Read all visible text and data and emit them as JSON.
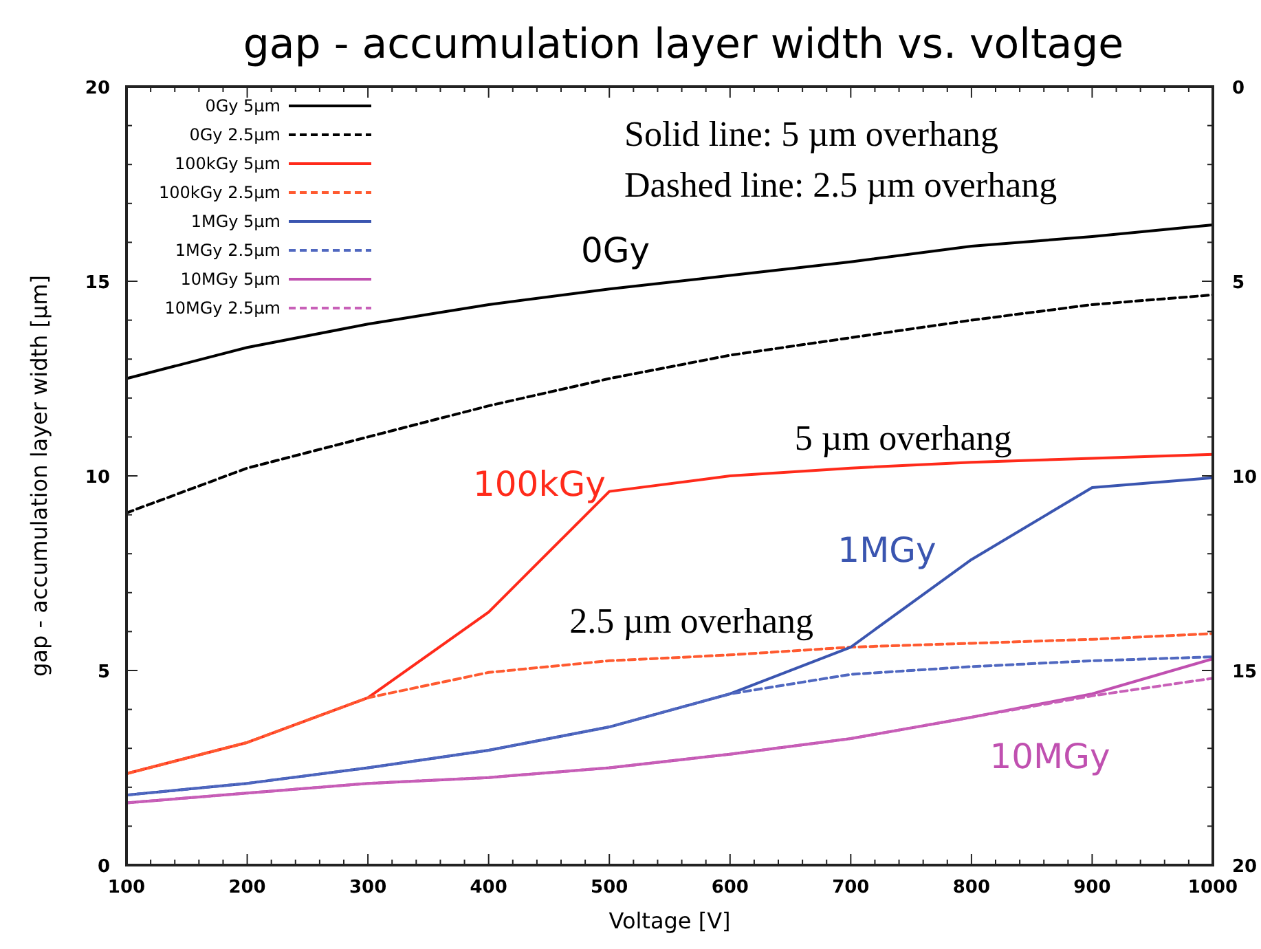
{
  "chart_data": {
    "type": "line",
    "title": "gap - accumulation layer width vs. voltage",
    "xlabel": "Voltage [V]",
    "ylabel": "gap - accumulation layer width [µm]",
    "x": [
      100,
      200,
      300,
      400,
      500,
      600,
      700,
      800,
      900,
      1000
    ],
    "xlim": [
      100,
      1000
    ],
    "xticks": [
      100,
      {
        "value": 120,
        "label": null
      },
      {
        "value": 140,
        "label": null
      },
      {
        "value": 160,
        "label": null
      },
      {
        "value": 180,
        "label": null
      },
      200,
      {
        "value": 220,
        "label": null
      },
      {
        "value": 240,
        "label": null
      },
      {
        "value": 260,
        "label": null
      },
      {
        "value": 280,
        "label": null
      },
      300,
      {
        "value": 320,
        "label": null
      },
      {
        "value": 340,
        "label": null
      },
      {
        "value": 360,
        "label": null
      },
      {
        "value": 380,
        "label": null
      },
      400,
      {
        "value": 420,
        "label": null
      },
      {
        "value": 440,
        "label": null
      },
      {
        "value": 460,
        "label": null
      },
      {
        "value": 480,
        "label": null
      },
      500,
      {
        "value": 520,
        "label": null
      },
      {
        "value": 540,
        "label": null
      },
      {
        "value": 560,
        "label": null
      },
      {
        "value": 580,
        "label": null
      },
      600,
      {
        "value": 620,
        "label": null
      },
      {
        "value": 640,
        "label": null
      },
      {
        "value": 660,
        "label": null
      },
      {
        "value": 680,
        "label": null
      },
      700,
      {
        "value": 720,
        "label": null
      },
      {
        "value": 740,
        "label": null
      },
      {
        "value": 760,
        "label": null
      },
      {
        "value": 780,
        "label": null
      },
      800,
      {
        "value": 820,
        "label": null
      },
      {
        "value": 840,
        "label": null
      },
      {
        "value": 860,
        "label": null
      },
      {
        "value": 880,
        "label": null
      },
      900,
      {
        "value": 920,
        "label": null
      },
      {
        "value": 940,
        "label": null
      },
      {
        "value": 960,
        "label": null
      },
      {
        "value": 980,
        "label": null
      },
      1000
    ],
    "ylim": [
      0,
      20
    ],
    "yticks": [
      0,
      {
        "value": 1,
        "label": null
      },
      {
        "value": 2,
        "label": null
      },
      {
        "value": 3,
        "label": null
      },
      {
        "value": 4,
        "label": null
      },
      5,
      {
        "value": 6,
        "label": null
      },
      {
        "value": 7,
        "label": null
      },
      {
        "value": 8,
        "label": null
      },
      {
        "value": 9,
        "label": null
      },
      10,
      {
        "value": 11,
        "label": null
      },
      {
        "value": 12,
        "label": null
      },
      {
        "value": 13,
        "label": null
      },
      {
        "value": 14,
        "label": null
      },
      15,
      {
        "value": 16,
        "label": null
      },
      {
        "value": 17,
        "label": null
      },
      {
        "value": 18,
        "label": null
      },
      {
        "value": 19,
        "label": null
      },
      20
    ],
    "y2lim": [
      20,
      0
    ],
    "y2ticks": [
      0,
      {
        "value": 1,
        "label": null
      },
      {
        "value": 2,
        "label": null
      },
      {
        "value": 3,
        "label": null
      },
      {
        "value": 4,
        "label": null
      },
      5,
      {
        "value": 6,
        "label": null
      },
      {
        "value": 7,
        "label": null
      },
      {
        "value": 8,
        "label": null
      },
      {
        "value": 9,
        "label": null
      },
      10,
      {
        "value": 11,
        "label": null
      },
      {
        "value": 12,
        "label": null
      },
      {
        "value": 13,
        "label": null
      },
      {
        "value": 14,
        "label": null
      },
      15,
      {
        "value": 16,
        "label": null
      },
      {
        "value": 17,
        "label": null
      },
      {
        "value": 18,
        "label": null
      },
      {
        "value": 19,
        "label": null
      },
      20
    ],
    "legend": "top left",
    "grid": false,
    "marker": "none",
    "series": [
      {
        "name": "0Gy 5µm",
        "color": "#000000",
        "line_style": "solid",
        "values": [
          12.5,
          13.3,
          13.9,
          14.4,
          14.8,
          15.15,
          15.5,
          15.9,
          16.15,
          16.45
        ]
      },
      {
        "name": "0Gy 2.5µm",
        "color": "#000000",
        "line_style": "dashed",
        "values": [
          9.05,
          10.2,
          11.0,
          11.8,
          12.5,
          13.1,
          13.55,
          14.0,
          14.4,
          14.65
        ]
      },
      {
        "name": "100kGy 5µm",
        "color": "#ff2a1a",
        "line_style": "solid",
        "values": [
          2.35,
          3.15,
          4.3,
          6.5,
          9.6,
          10.0,
          10.2,
          10.35,
          10.45,
          10.55
        ]
      },
      {
        "name": "100kGy 2.5µm",
        "color": "#ff5a30",
        "line_style": "dashed",
        "values": [
          2.35,
          3.15,
          4.3,
          4.95,
          5.25,
          5.4,
          5.6,
          5.7,
          5.8,
          5.95
        ]
      },
      {
        "name": "1MGy 5µm",
        "color": "#3a55b0",
        "line_style": "solid",
        "values": [
          1.8,
          2.1,
          2.5,
          2.95,
          3.55,
          4.4,
          5.6,
          7.85,
          9.7,
          9.95
        ]
      },
      {
        "name": "1MGy 2.5µm",
        "color": "#5068c0",
        "line_style": "dashed",
        "values": [
          1.8,
          2.1,
          2.5,
          2.95,
          3.55,
          4.4,
          4.9,
          5.1,
          5.25,
          5.35
        ]
      },
      {
        "name": "10MGy 5µm",
        "color": "#c050b0",
        "line_style": "solid",
        "values": [
          1.6,
          1.85,
          2.1,
          2.25,
          2.5,
          2.85,
          3.25,
          3.8,
          4.4,
          5.3
        ]
      },
      {
        "name": "10MGy 2.5µm",
        "color": "#c860b8",
        "line_style": "dashed",
        "values": [
          1.6,
          1.85,
          2.1,
          2.25,
          2.5,
          2.85,
          3.25,
          3.8,
          4.35,
          4.8
        ]
      }
    ],
    "annotations": [
      "Solid line: 5 µm overhang",
      "Dashed line: 2.5 µm overhang",
      "0Gy",
      "100kGy",
      "1MGy",
      "10MGy",
      "5 µm overhang",
      "2.5 µm overhang"
    ]
  }
}
